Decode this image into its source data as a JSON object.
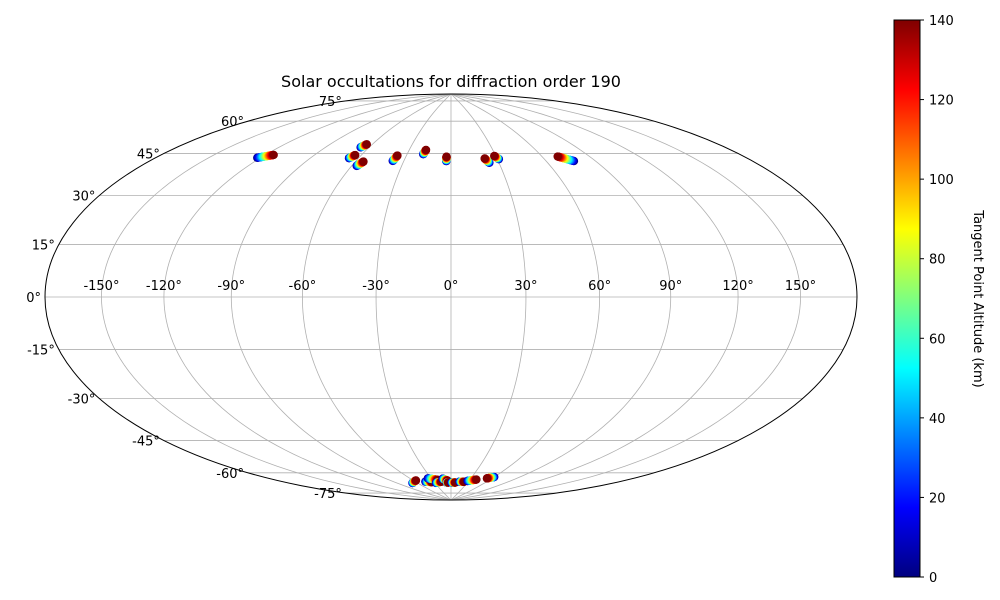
{
  "chart_data": {
    "type": "scatter",
    "projection": "hammer",
    "title": "Solar occultations for diffraction order 190",
    "xlabel": "",
    "ylabel": "",
    "grid": true,
    "lon_ticks": [
      "-150°",
      "-120°",
      "-90°",
      "-60°",
      "-30°",
      "0°",
      "30°",
      "60°",
      "90°",
      "120°",
      "150°"
    ],
    "lat_ticks": [
      "75°",
      "60°",
      "45°",
      "30°",
      "15°",
      "0°",
      "-15°",
      "-30°",
      "-45°",
      "-60°",
      "-75°"
    ],
    "lon_tick_values": [
      -150,
      -120,
      -90,
      -60,
      -30,
      0,
      30,
      60,
      90,
      120,
      150
    ],
    "lat_tick_values": [
      75,
      60,
      45,
      30,
      15,
      0,
      -15,
      -30,
      -45,
      -60,
      -75
    ],
    "colorbar": {
      "label": "Tangent Point Altitude (km)",
      "colormap": "jet",
      "range": [
        0,
        140
      ],
      "ticks": [
        "0",
        "20",
        "40",
        "60",
        "80",
        "100",
        "120",
        "140"
      ],
      "tick_values": [
        0,
        20,
        40,
        60,
        80,
        100,
        120,
        140
      ]
    },
    "tracks": [
      {
        "lon_low": -122,
        "lat_low": 51.5,
        "lon_high": -115,
        "lat_high": 53.5
      },
      {
        "lon_low": -66,
        "lat_low": 61.0,
        "lon_high": -64,
        "lat_high": 62.5
      },
      {
        "lon_low": -66,
        "lat_low": 56.0,
        "lon_high": -64,
        "lat_high": 57.5
      },
      {
        "lon_low": -57,
        "lat_low": 53.0,
        "lon_high": -55,
        "lat_high": 55.0
      },
      {
        "lon_low": -37,
        "lat_low": 56.0,
        "lon_high": -36,
        "lat_high": 58.5
      },
      {
        "lon_low": -19,
        "lat_low": 59.5,
        "lon_high": -18,
        "lat_high": 61.5
      },
      {
        "lon_low": -3,
        "lat_low": 56.5,
        "lon_high": -3,
        "lat_high": 58.5
      },
      {
        "lon_low": 24,
        "lat_low": 55.5,
        "lon_high": 22,
        "lat_high": 57.5
      },
      {
        "lon_low": 31,
        "lat_low": 57.0,
        "lon_high": 29,
        "lat_high": 58.5
      },
      {
        "lon_low": 77,
        "lat_low": 54.0,
        "lon_high": 70,
        "lat_high": 56.5
      },
      {
        "lon_low": -68,
        "lat_low": -79.5,
        "lon_high": -56,
        "lat_high": -78.5
      },
      {
        "lon_low": -44,
        "lat_low": -79.5,
        "lon_high": -34,
        "lat_high": -80.0
      },
      {
        "lon_low": -35,
        "lat_low": -78.0,
        "lon_high": -22,
        "lat_high": -79.0
      },
      {
        "lon_low": -28,
        "lat_low": -80.5,
        "lon_high": -17,
        "lat_high": -80.0
      },
      {
        "lon_low": -13,
        "lat_low": -78.5,
        "lon_high": -6,
        "lat_high": -79.5
      },
      {
        "lon_low": -8,
        "lat_low": -80.5,
        "lon_high": -5,
        "lat_high": -80.5
      },
      {
        "lon_low": 1,
        "lat_low": -80.5,
        "lon_high": 8,
        "lat_high": -80.5
      },
      {
        "lon_low": 15,
        "lat_low": -80.0,
        "lon_high": 23,
        "lat_high": -80.0
      },
      {
        "lon_low": 28,
        "lat_low": -79.5,
        "lon_high": 40,
        "lat_high": -78.5
      },
      {
        "lon_low": 60,
        "lat_low": -76.5,
        "lon_high": 53,
        "lat_high": -77.5
      }
    ]
  }
}
